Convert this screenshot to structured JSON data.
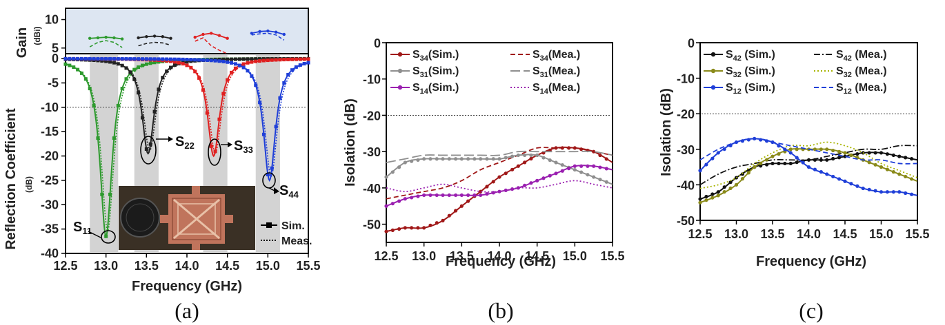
{
  "chart_data": [
    {
      "panel": "(a)",
      "type": "line",
      "xlabel": "Frequency (GHz)",
      "xlim": [
        12.5,
        15.5
      ],
      "xticks": [
        "12.5",
        "13.0",
        "13.5",
        "14.0",
        "14.5",
        "15.0",
        "15.5"
      ],
      "gain": {
        "ylabel": "Gain",
        "yunit": "(dBi)",
        "ylim": [
          4,
          12
        ],
        "yticks": [
          "5",
          "10"
        ],
        "background": "#dde6f2",
        "series": [
          {
            "color": "#2e9a2e",
            "x": [
              12.8,
              12.9,
              13.0,
              13.1,
              13.2
            ],
            "sim": [
              6.7,
              6.8,
              6.9,
              6.8,
              6.6
            ],
            "meas": [
              5.2,
              6.0,
              6.3,
              6.0,
              5.1
            ]
          },
          {
            "color": "#222222",
            "x": [
              13.4,
              13.5,
              13.6,
              13.7,
              13.8
            ],
            "sim": [
              6.8,
              7.0,
              7.1,
              7.0,
              6.7
            ],
            "meas": [
              5.4,
              5.8,
              6.0,
              5.9,
              5.5
            ]
          },
          {
            "color": "#e02020",
            "x": [
              14.1,
              14.2,
              14.3,
              14.4,
              14.5
            ],
            "sim": [
              6.9,
              7.4,
              7.6,
              7.2,
              6.7
            ],
            "meas": [
              6.2,
              6.8,
              5.4,
              4.6,
              4.0
            ]
          },
          {
            "color": "#1f3fd8",
            "x": [
              14.8,
              14.9,
              15.0,
              15.1,
              15.2
            ],
            "sim": [
              7.6,
              7.9,
              8.0,
              7.8,
              7.4
            ],
            "meas": [
              7.3,
              7.5,
              7.6,
              7.3,
              6.4
            ]
          }
        ]
      },
      "reflection": {
        "ylabel": "Reflection Coefficient",
        "yunit": "(dB)",
        "ylim": [
          -40,
          1
        ],
        "yticks": [
          "0",
          "-5",
          "-10",
          "-15",
          "-20",
          "-25",
          "-30",
          "-35",
          "-40"
        ],
        "reference_line": -10,
        "bands": [
          [
            12.8,
            13.15
          ],
          [
            13.35,
            13.65
          ],
          [
            14.2,
            14.5
          ],
          [
            14.85,
            15.15
          ]
        ],
        "series": [
          {
            "name": "S11",
            "color": "#2e9a2e",
            "f0": 13.0,
            "min": -36.5
          },
          {
            "name": "S22",
            "color": "#222222",
            "f0": 13.52,
            "min": -19.5
          },
          {
            "name": "S33",
            "color": "#e02020",
            "f0": 14.33,
            "min": -20.0
          },
          {
            "name": "S44",
            "color": "#1f3fd8",
            "f0": 15.02,
            "min": -25.0
          }
        ],
        "labels": {
          "s11": "S",
          "s11sub": "11",
          "s22": "S",
          "s22sub": "22",
          "s33": "S",
          "s33sub": "33",
          "s44": "S",
          "s44sub": "44"
        },
        "legend": {
          "sim": "Sim.",
          "meas": "Meas."
        }
      }
    },
    {
      "panel": "(b)",
      "type": "line",
      "xlabel": "Frequency (GHz)",
      "ylabel": "Isolation (dB)",
      "xlim": [
        12.5,
        15.5
      ],
      "ylim": [
        -55,
        0
      ],
      "xticks": [
        "12.5",
        "13.0",
        "13.5",
        "14.0",
        "14.5",
        "15.0",
        "15.5"
      ],
      "yticks": [
        "0",
        "-10",
        "-20",
        "-30",
        "-40",
        "-50"
      ],
      "reference_line": -20,
      "x": [
        12.5,
        12.75,
        13.0,
        13.25,
        13.5,
        13.75,
        14.0,
        14.25,
        14.5,
        14.75,
        15.0,
        15.25,
        15.5
      ],
      "series": [
        {
          "name": "S34(Sim.)",
          "base": "S",
          "sub": "34",
          "tail": "(Sim.)",
          "color": "#a01818",
          "style": "sim",
          "values": [
            -52,
            -51,
            -51,
            -49,
            -45,
            -41,
            -37,
            -34,
            -31,
            -29,
            -29,
            -30,
            -33
          ]
        },
        {
          "name": "S34(Mea.)",
          "base": "S",
          "sub": "34",
          "tail": "(Mea.)",
          "color": "#a01818",
          "style": "dash",
          "values": [
            -43,
            -42,
            -41,
            -40,
            -38,
            -35,
            -33,
            -31,
            -29,
            -29,
            -29,
            -30,
            -31
          ]
        },
        {
          "name": "S31(Sim.)",
          "base": "S",
          "sub": "31",
          "tail": "(Sim.)",
          "color": "#8f8f8f",
          "style": "sim",
          "values": [
            -37,
            -33,
            -32,
            -32,
            -32,
            -32,
            -32,
            -31,
            -31,
            -33,
            -35,
            -37,
            -39
          ]
        },
        {
          "name": "S31(Mea.)",
          "base": "S",
          "sub": "31",
          "tail": "(Mea.)",
          "color": "#8f8f8f",
          "style": "longdash",
          "values": [
            -33,
            -32,
            -31,
            -31,
            -31,
            -31,
            -31,
            -30,
            -30,
            -30,
            -30,
            -30,
            -31
          ]
        },
        {
          "name": "S14(Sim.)",
          "base": "S",
          "sub": "14",
          "tail": "(Sim.)",
          "color": "#9a1fb0",
          "style": "sim",
          "values": [
            -45,
            -43,
            -42,
            -42,
            -42,
            -42,
            -41,
            -40,
            -38,
            -36,
            -34,
            -34,
            -35
          ]
        },
        {
          "name": "S14(Mea.)",
          "base": "S",
          "sub": "14",
          "tail": "(Mea.)",
          "color": "#9a1fb0",
          "style": "dot",
          "values": [
            -40,
            -41,
            -40,
            -39,
            -40,
            -41,
            -41,
            -40,
            -40,
            -39,
            -38,
            -39,
            -40
          ]
        }
      ]
    },
    {
      "panel": "(c)",
      "type": "line",
      "xlabel": "Frequency (GHz)",
      "ylabel": "Isolation (dB)",
      "xlim": [
        12.5,
        15.5
      ],
      "ylim": [
        -50,
        0
      ],
      "xticks": [
        "12.5",
        "13.0",
        "13.5",
        "14.0",
        "14.5",
        "15.0",
        "15.5"
      ],
      "yticks": [
        "0",
        "-10",
        "-20",
        "-30",
        "-40",
        "-50"
      ],
      "reference_line": -20,
      "x": [
        12.5,
        12.75,
        13.0,
        13.25,
        13.5,
        13.75,
        14.0,
        14.25,
        14.5,
        14.75,
        15.0,
        15.25,
        15.5
      ],
      "series": [
        {
          "name": "S42 (Sim.)",
          "base": "S",
          "sub": "42",
          "tail": " (Sim.)",
          "color": "#111111",
          "style": "sim",
          "values": [
            -44,
            -42,
            -38,
            -35,
            -34,
            -34,
            -33,
            -33,
            -32,
            -31,
            -31,
            -32,
            -33
          ]
        },
        {
          "name": "S42 (Mea.)",
          "base": "S",
          "sub": "42",
          "tail": " (Mea.)",
          "color": "#111111",
          "style": "dashdot",
          "values": [
            -40,
            -37,
            -35,
            -34,
            -33,
            -33,
            -33,
            -32,
            -31,
            -30,
            -30,
            -29,
            -29
          ]
        },
        {
          "name": "S32 (Sim.)",
          "base": "S",
          "sub": "32",
          "tail": " (Sim.)",
          "color": "#8a8a1a",
          "style": "sim",
          "values": [
            -45,
            -43,
            -40,
            -35,
            -32,
            -30,
            -30,
            -30,
            -31,
            -33,
            -35,
            -37,
            -39
          ]
        },
        {
          "name": "S32 (Mea.)",
          "base": "S",
          "sub": "32",
          "tail": " (Mea.)",
          "color": "#a8b400",
          "style": "dot",
          "values": [
            -41,
            -40,
            -38,
            -34,
            -31,
            -29,
            -29,
            -28,
            -29,
            -31,
            -34,
            -36,
            -38
          ]
        },
        {
          "name": "S12 (Sim.)",
          "base": "S",
          "sub": "12",
          "tail": " (Sim.)",
          "color": "#1f3fd8",
          "style": "sim",
          "values": [
            -36,
            -31,
            -28,
            -27,
            -28,
            -31,
            -35,
            -37,
            -39,
            -41,
            -42,
            -42,
            -43
          ]
        },
        {
          "name": "S12 (Mea.)",
          "base": "S",
          "sub": "12",
          "tail": " (Mea.)",
          "color": "#1f3fd8",
          "style": "dash",
          "values": [
            -33,
            -30,
            -28,
            -27,
            -28,
            -29,
            -30,
            -31,
            -32,
            -33,
            -33,
            -34,
            -34
          ]
        }
      ]
    }
  ],
  "captions": [
    "(a)",
    "(b)",
    "(c)"
  ]
}
